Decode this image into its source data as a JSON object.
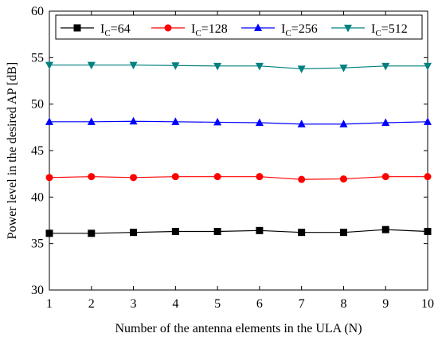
{
  "chart_data": {
    "type": "line",
    "title": "",
    "xlabel": "Number of the antenna elements in the ULA (N)",
    "ylabel": "Power level in the desired AP [dB]",
    "x": [
      1,
      2,
      3,
      4,
      5,
      6,
      7,
      8,
      9,
      10
    ],
    "xlim": [
      1,
      10
    ],
    "ylim": [
      30,
      60
    ],
    "xticks": [
      1,
      2,
      3,
      4,
      5,
      6,
      7,
      8,
      9,
      10
    ],
    "yticks": [
      30,
      35,
      40,
      45,
      50,
      55,
      60
    ],
    "grid": false,
    "legend_position": "top",
    "series": [
      {
        "name": "I_C=64",
        "legend_main": "I",
        "legend_sub": "C",
        "legend_rest": "=64",
        "color": "#000000",
        "marker": "square",
        "values": [
          36.1,
          36.1,
          36.2,
          36.3,
          36.3,
          36.4,
          36.2,
          36.2,
          36.5,
          36.3
        ]
      },
      {
        "name": "I_C=128",
        "legend_main": "I",
        "legend_sub": "C",
        "legend_rest": "=128",
        "color": "#ff0000",
        "marker": "circle",
        "values": [
          42.1,
          42.2,
          42.1,
          42.2,
          42.2,
          42.2,
          41.9,
          41.95,
          42.2,
          42.2
        ]
      },
      {
        "name": "I_C=256",
        "legend_main": "I",
        "legend_sub": "C",
        "legend_rest": "=256",
        "color": "#0000ff",
        "marker": "triangle-up",
        "values": [
          48.1,
          48.1,
          48.15,
          48.1,
          48.05,
          48.0,
          47.85,
          47.85,
          48.0,
          48.1
        ]
      },
      {
        "name": "I_C=512",
        "legend_main": "I",
        "legend_sub": "C",
        "legend_rest": "=512",
        "color": "#008080",
        "marker": "triangle-down",
        "values": [
          54.2,
          54.2,
          54.2,
          54.15,
          54.1,
          54.1,
          53.8,
          53.9,
          54.1,
          54.1
        ]
      }
    ]
  }
}
